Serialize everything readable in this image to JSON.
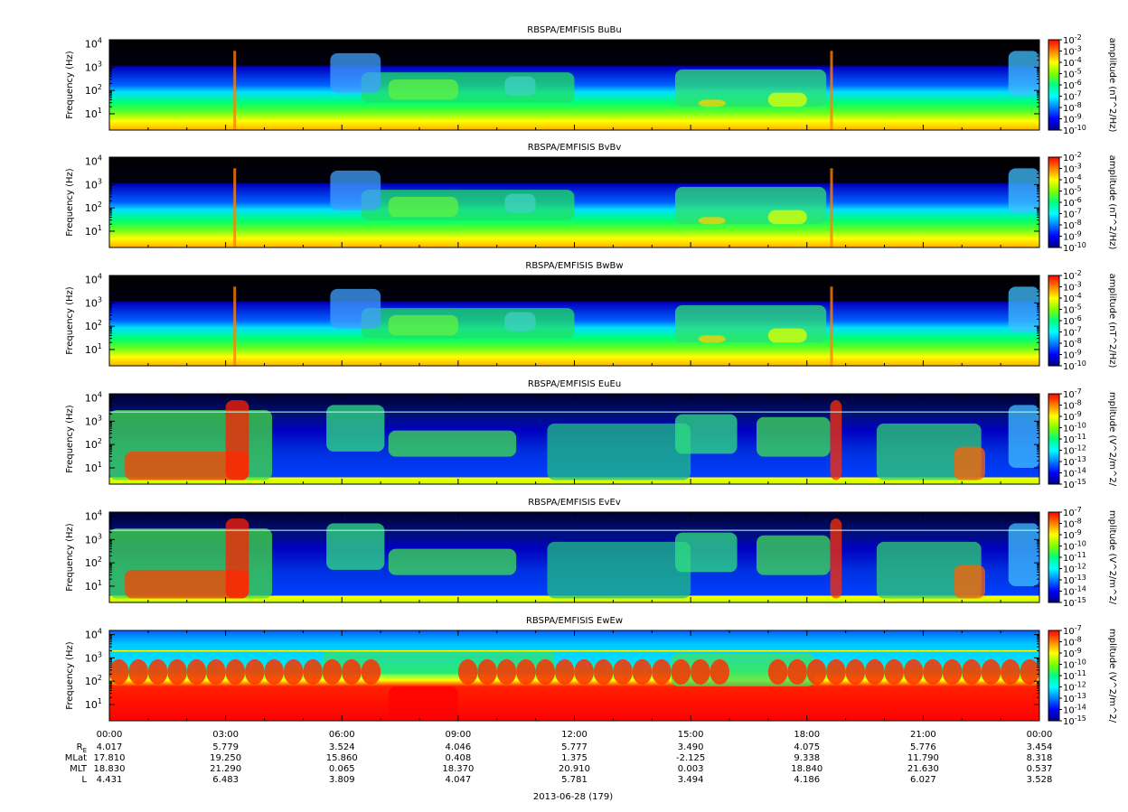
{
  "chart_data": {
    "type": "heatmap",
    "panels": [
      {
        "title": "RBSPA/EMFISIS  BuBu",
        "ylabel": "Frequency (Hz)",
        "yticks": [
          "10",
          "10",
          "10",
          "10"
        ],
        "yticks_exp": [
          "1",
          "2",
          "3",
          "4"
        ],
        "zlabel": "amplitude (nT^2/Hz)",
        "zticks_exp": [
          "-2",
          "-3",
          "-4",
          "-5",
          "-6",
          "-7",
          "-8",
          "-9",
          "-10"
        ],
        "zrange": [
          1e-10,
          0.01
        ],
        "field": "B"
      },
      {
        "title": "RBSPA/EMFISIS  BvBv",
        "ylabel": "Frequency (Hz)",
        "yticks": [
          "10",
          "10",
          "10",
          "10"
        ],
        "yticks_exp": [
          "1",
          "2",
          "3",
          "4"
        ],
        "zlabel": "amplitude (nT^2/Hz)",
        "zticks_exp": [
          "-2",
          "-3",
          "-4",
          "-5",
          "-6",
          "-7",
          "-8",
          "-9",
          "-10"
        ],
        "zrange": [
          1e-10,
          0.01
        ],
        "field": "B"
      },
      {
        "title": "RBSPA/EMFISIS  BwBw",
        "ylabel": "Frequency (Hz)",
        "yticks": [
          "10",
          "10",
          "10",
          "10"
        ],
        "yticks_exp": [
          "1",
          "2",
          "3",
          "4"
        ],
        "zlabel": "amplitude (nT^2/Hz)",
        "zticks_exp": [
          "-2",
          "-3",
          "-4",
          "-5",
          "-6",
          "-7",
          "-8",
          "-9",
          "-10"
        ],
        "zrange": [
          1e-10,
          0.01
        ],
        "field": "B"
      },
      {
        "title": "RBSPA/EMFISIS  EuEu",
        "ylabel": "Frequency (Hz)",
        "yticks": [
          "10",
          "10",
          "10",
          "10"
        ],
        "yticks_exp": [
          "1",
          "2",
          "3",
          "4"
        ],
        "zlabel": "mplitude (V^2/m^2/",
        "zticks_exp": [
          "-7",
          "-8",
          "-9",
          "-10",
          "-11",
          "-12",
          "-13",
          "-14",
          "-15"
        ],
        "zrange": [
          1e-15,
          1e-07
        ],
        "field": "E"
      },
      {
        "title": "RBSPA/EMFISIS  EvEv",
        "ylabel": "Frequency (Hz)",
        "yticks": [
          "10",
          "10",
          "10",
          "10"
        ],
        "yticks_exp": [
          "1",
          "2",
          "3",
          "4"
        ],
        "zlabel": "mplitude (V^2/m^2/",
        "zticks_exp": [
          "-7",
          "-8",
          "-9",
          "-10",
          "-11",
          "-12",
          "-13",
          "-14",
          "-15"
        ],
        "zrange": [
          1e-15,
          1e-07
        ],
        "field": "E"
      },
      {
        "title": "RBSPA/EMFISIS  EwEw",
        "ylabel": "Frequency (Hz)",
        "yticks": [
          "10",
          "10",
          "10",
          "10"
        ],
        "yticks_exp": [
          "1",
          "2",
          "3",
          "4"
        ],
        "zlabel": "mplitude (V^2/m^2/",
        "zticks_exp": [
          "-7",
          "-8",
          "-9",
          "-10",
          "-11",
          "-12",
          "-13",
          "-14",
          "-15"
        ],
        "zrange": [
          1e-15,
          1e-07
        ],
        "field": "Ew"
      }
    ],
    "yrange_hz": [
      2,
      15000
    ],
    "yscale": "log",
    "xrange": [
      "2013-06-28 00:00",
      "2013-06-29 00:00"
    ],
    "xticks": [
      "00:00",
      "03:00",
      "06:00",
      "09:00",
      "12:00",
      "15:00",
      "18:00",
      "21:00",
      "00:00"
    ],
    "ephemeris": {
      "rows": [
        {
          "label": "R",
          "sub": "E",
          "values": [
            "4.017",
            "5.779",
            "3.524",
            "4.046",
            "5.777",
            "3.490",
            "4.075",
            "5.776",
            "3.454"
          ]
        },
        {
          "label": "MLat",
          "sub": "",
          "values": [
            "17.810",
            "19.250",
            "15.860",
            "0.408",
            "1.375",
            "-2.125",
            "9.338",
            "11.790",
            "8.318"
          ]
        },
        {
          "label": "MLT",
          "sub": "",
          "values": [
            "18.830",
            "21.290",
            "0.065",
            "18.370",
            "20.910",
            "0.003",
            "18.840",
            "21.630",
            "0.537"
          ]
        },
        {
          "label": "L",
          "sub": "",
          "values": [
            "4.431",
            "6.483",
            "3.809",
            "4.047",
            "5.781",
            "3.494",
            "4.186",
            "6.027",
            "3.528"
          ]
        }
      ]
    },
    "date_label": "2013-06-28 (179)",
    "colormap": [
      "#000080",
      "#0000ff",
      "#0080ff",
      "#00ffff",
      "#00ff80",
      "#80ff00",
      "#ffff00",
      "#ff8000",
      "#ff0000"
    ]
  }
}
